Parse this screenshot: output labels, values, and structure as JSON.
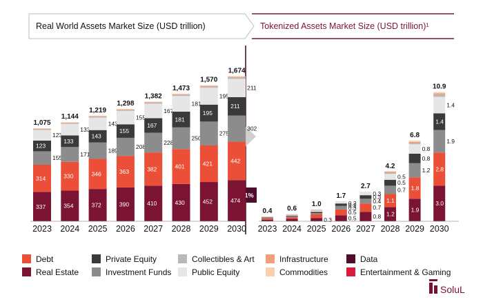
{
  "headers": {
    "left": "Real World Assets Market Size (USD trillion)",
    "right": "Tokenized Assets Market Size (USD trillion)¹"
  },
  "badge": "x<1%",
  "brand": "SoluL",
  "colors": {
    "Debt": "#ec4f37",
    "Real Estate": "#7b1433",
    "Private Equity": "#3a3a3a",
    "Investment Funds": "#8c8c8c",
    "Collectibles & Art": "#b8b8b8",
    "Public Equity": "#e6e6e6",
    "Infrastructure": "#f2a07a",
    "Commodities": "#f9cfae",
    "Data": "#4e0d2a",
    "Entertainment & Gaming": "#d81b3c",
    "left_header": "#111111",
    "right_header": "#7b1433",
    "arrow": "#cfcfcf",
    "divider": "#4e0d2a"
  },
  "chart_data": [
    {
      "type": "bar",
      "stacked": true,
      "title": "Real World Assets Market Size (USD trillion)",
      "categories": [
        "2023",
        "2024",
        "2025",
        "2026",
        "2027",
        "2028",
        "2029",
        "2030"
      ],
      "totals": [
        "1,075",
        "1,144",
        "1,219",
        "1,298",
        "1,382",
        "1,473",
        "1,570",
        "1,674"
      ],
      "series": [
        {
          "name": "Real Estate",
          "values": [
            337,
            354,
            372,
            390,
            410,
            430,
            452,
            474
          ]
        },
        {
          "name": "Debt",
          "values": [
            314,
            330,
            346,
            363,
            382,
            401,
            421,
            442
          ]
        },
        {
          "name": "Investment Funds",
          "values": [
            155,
            171,
            189,
            208,
            228,
            250,
            275,
            302
          ]
        },
        {
          "name": "Private Equity",
          "values": [
            123,
            133,
            143,
            155,
            167,
            181,
            195,
            211
          ]
        },
        {
          "name": "Public Equity",
          "values": [
            123,
            133,
            143,
            155,
            167,
            181,
            195,
            211
          ]
        },
        {
          "name": "Collectibles & Art",
          "values": [
            8,
            9,
            10,
            10,
            11,
            12,
            13,
            14
          ]
        },
        {
          "name": "Infrastructure",
          "values": [
            6,
            6,
            7,
            7,
            7,
            8,
            8,
            9
          ]
        },
        {
          "name": "Commodities",
          "values": [
            5,
            5,
            5,
            6,
            6,
            6,
            7,
            7
          ]
        }
      ],
      "segment_labels": [
        "Real Estate",
        "Debt",
        "Investment Funds",
        "Private Equity",
        "Public Equity"
      ]
    },
    {
      "type": "bar",
      "stacked": true,
      "title": "Tokenized Assets Market Size (USD trillion)¹",
      "categories": [
        "2023",
        "2024",
        "2025",
        "2026",
        "2027",
        "2028",
        "2029",
        "2030"
      ],
      "totals": [
        "0.4",
        "0.6",
        "1.0",
        "1.7",
        "2.7",
        "4.2",
        "6.8",
        "10.9"
      ],
      "series": [
        {
          "name": "Real Estate",
          "values": [
            0.13,
            0.2,
            0.28,
            0.5,
            0.8,
            1.2,
            1.9,
            3.0
          ]
        },
        {
          "name": "Debt",
          "values": [
            0.1,
            0.14,
            0.3,
            0.5,
            0.7,
            1.1,
            1.8,
            2.8
          ]
        },
        {
          "name": "Investment Funds",
          "values": [
            0.05,
            0.08,
            0.12,
            0.3,
            0.4,
            0.7,
            1.2,
            1.9
          ]
        },
        {
          "name": "Private Equity",
          "values": [
            0.04,
            0.06,
            0.1,
            0.2,
            0.3,
            0.5,
            0.8,
            1.4
          ]
        },
        {
          "name": "Public Equity",
          "values": [
            0.03,
            0.05,
            0.1,
            0.2,
            0.3,
            0.5,
            0.8,
            1.4
          ]
        },
        {
          "name": "Collectibles & Art",
          "values": [
            0.02,
            0.03,
            0.05,
            0.0,
            0.0,
            0.1,
            0.1,
            0.2
          ]
        },
        {
          "name": "Infrastructure",
          "values": [
            0.02,
            0.02,
            0.03,
            0.0,
            0.0,
            0.1,
            0.1,
            0.1
          ]
        },
        {
          "name": "Commodities",
          "values": [
            0.01,
            0.02,
            0.02,
            0.0,
            0.0,
            0.0,
            0.1,
            0.1
          ]
        }
      ],
      "labels_by_year": {
        "2025": [
          "0.3"
        ],
        "2026": [
          "0.5",
          "0.5",
          "0.3",
          "0.2",
          "0.2"
        ],
        "2027": [
          "0.8",
          "0.7",
          "0.4",
          "0.3",
          "0.3"
        ],
        "2028": [
          "1.2",
          "1.1",
          "0.7",
          "0.5",
          "0.5"
        ],
        "2029": [
          "1.9",
          "1.8",
          "1.2",
          "0.8",
          "0.8"
        ],
        "2030": [
          "3.0",
          "2.8",
          "1.9",
          "1.4",
          "1.4"
        ]
      }
    }
  ],
  "legend": {
    "rows": [
      [
        "Debt",
        "Private Equity",
        "Collectibles & Art",
        "Infrastructure",
        "Data"
      ],
      [
        "Real Estate",
        "Investment Funds",
        "Public Equity",
        "Commodities",
        "Entertainment & Gaming"
      ]
    ]
  }
}
